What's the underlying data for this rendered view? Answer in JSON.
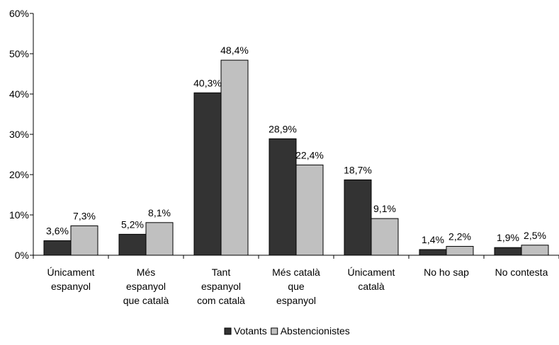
{
  "chart_data": {
    "type": "bar",
    "title": "",
    "xlabel": "",
    "ylabel": "",
    "ylim": [
      0,
      60
    ],
    "yticks": [
      0,
      10,
      20,
      30,
      40,
      50,
      60
    ],
    "ytick_labels": [
      "0%",
      "10%",
      "20%",
      "30%",
      "40%",
      "50%",
      "60%"
    ],
    "grid": false,
    "legend_position": "bottom",
    "categories": [
      [
        "Únicament",
        "espanyol"
      ],
      [
        "Més",
        "espanyol",
        "que català"
      ],
      [
        "Tant",
        "espanyol",
        "com català"
      ],
      [
        "Més català",
        "que",
        "espanyol"
      ],
      [
        "Únicament",
        "català"
      ],
      [
        "No ho sap"
      ],
      [
        "No contesta"
      ]
    ],
    "series": [
      {
        "name": "Votants",
        "color": "#333333",
        "values": [
          3.6,
          5.2,
          40.3,
          28.9,
          18.7,
          1.4,
          1.9
        ],
        "labels": [
          "3,6%",
          "5,2%",
          "40,3%",
          "28,9%",
          "18,7%",
          "1,4%",
          "1,9%"
        ]
      },
      {
        "name": "Abstencionistes",
        "color": "#c0c0c0",
        "values": [
          7.3,
          8.1,
          48.4,
          22.4,
          9.1,
          2.2,
          2.5
        ],
        "labels": [
          "7,3%",
          "8,1%",
          "48,4%",
          "22,4%",
          "9,1%",
          "2,2%",
          "2,5%"
        ]
      }
    ]
  }
}
